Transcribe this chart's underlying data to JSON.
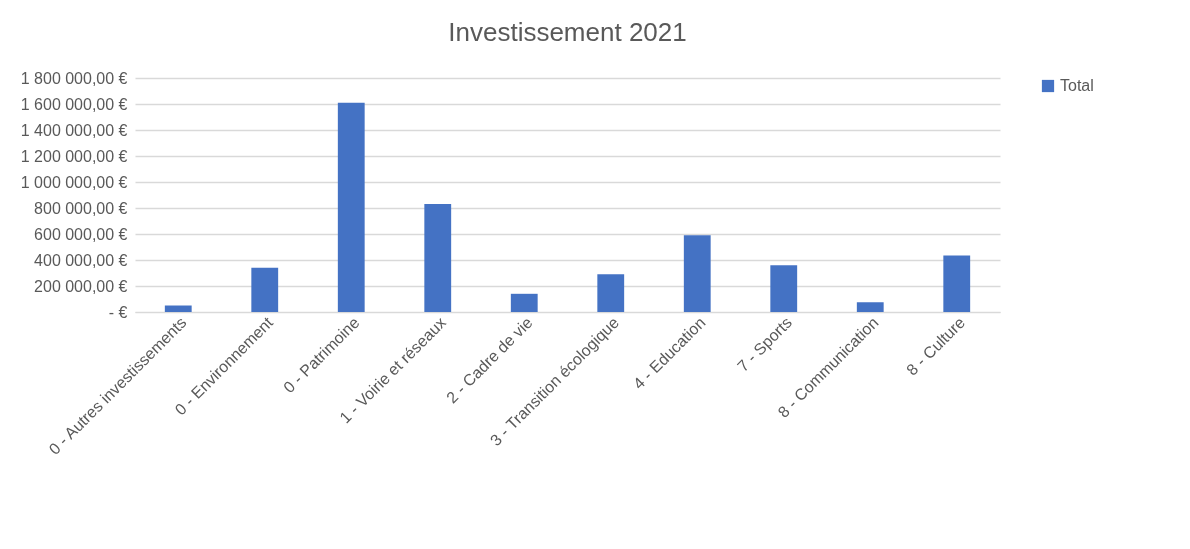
{
  "chart_data": {
    "type": "bar",
    "title": "Investissement 2021",
    "categories": [
      "0 - Autres investissements",
      "0 - Environnement",
      "0 - Patrimoine",
      "1 - Voirie et réseaux",
      "2 - Cadre de vie",
      "3 - Transition écologique",
      "4 - Education",
      "7 - Sports",
      "8 - Communication",
      "8 - Culture"
    ],
    "series": [
      {
        "name": "Total",
        "color": "#4472c4",
        "values": [
          50000,
          340000,
          1610000,
          830000,
          140000,
          290000,
          590000,
          360000,
          75000,
          435000
        ]
      }
    ],
    "ylim": [
      0,
      1800000
    ],
    "yticks": [
      {
        "value": 0,
        "label": "-  €"
      },
      {
        "value": 200000,
        "label": "200 000,00 €"
      },
      {
        "value": 400000,
        "label": "400 000,00 €"
      },
      {
        "value": 600000,
        "label": "600 000,00 €"
      },
      {
        "value": 800000,
        "label": "800 000,00 €"
      },
      {
        "value": 1000000,
        "label": "1 000 000,00 €"
      },
      {
        "value": 1200000,
        "label": "1 200 000,00 €"
      },
      {
        "value": 1400000,
        "label": "1 400 000,00 €"
      },
      {
        "value": 1600000,
        "label": "1 600 000,00 €"
      },
      {
        "value": 1800000,
        "label": "1 800 000,00 €"
      }
    ],
    "grid": "y",
    "legend": "right"
  }
}
